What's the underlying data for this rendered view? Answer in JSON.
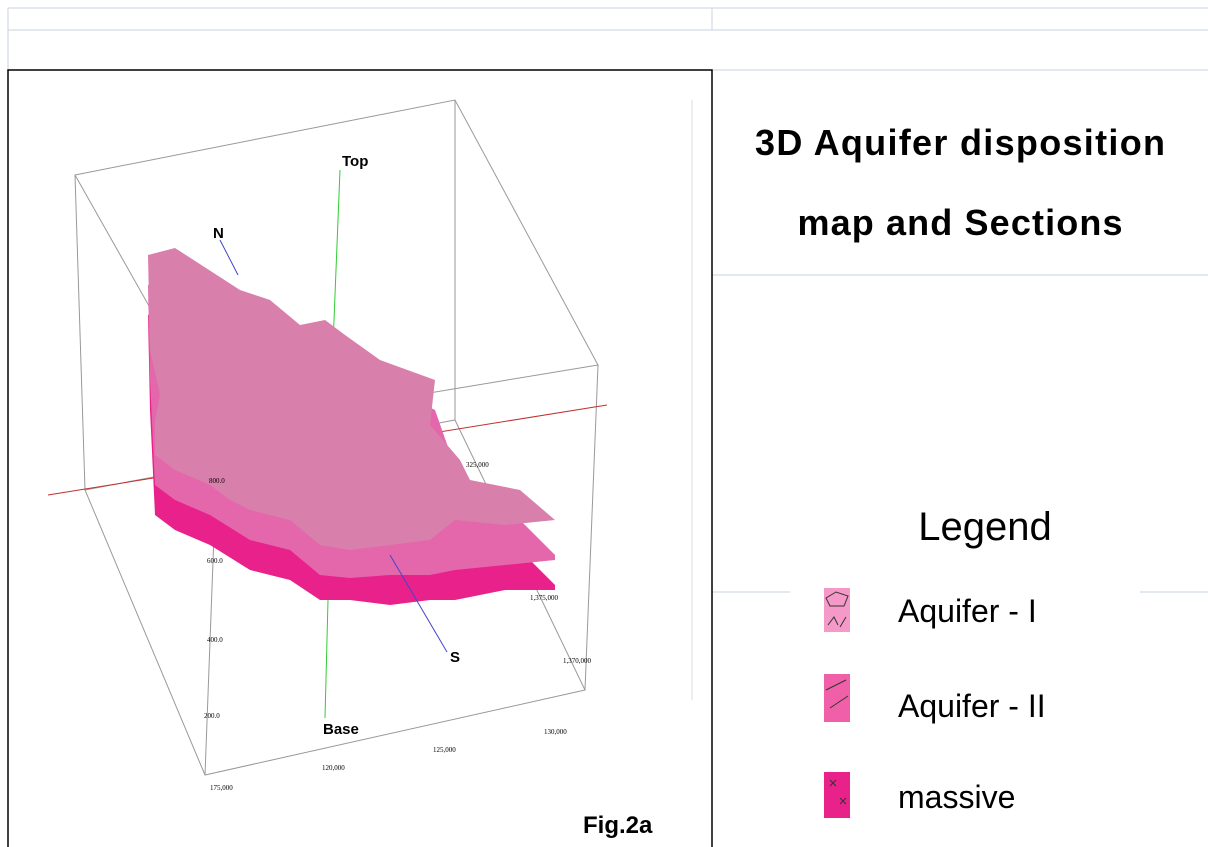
{
  "figure": {
    "axis_labels": {
      "top": "Top",
      "north": "N",
      "south": "S",
      "base": "Base"
    },
    "tick_labels": [
      "800.0",
      "600.0",
      "400.0",
      "200.0",
      "325,000",
      "1,375,000",
      "1,370,000",
      "130,000",
      "125,000",
      "120,000",
      "175,000"
    ],
    "caption": "Fig.2a"
  },
  "panel": {
    "title_lines": [
      "3D Aquifer disposition",
      "map and Sections"
    ],
    "legend": {
      "title": "Legend",
      "items": [
        "Aquifer - I",
        "Aquifer - II",
        "massive"
      ]
    }
  }
}
